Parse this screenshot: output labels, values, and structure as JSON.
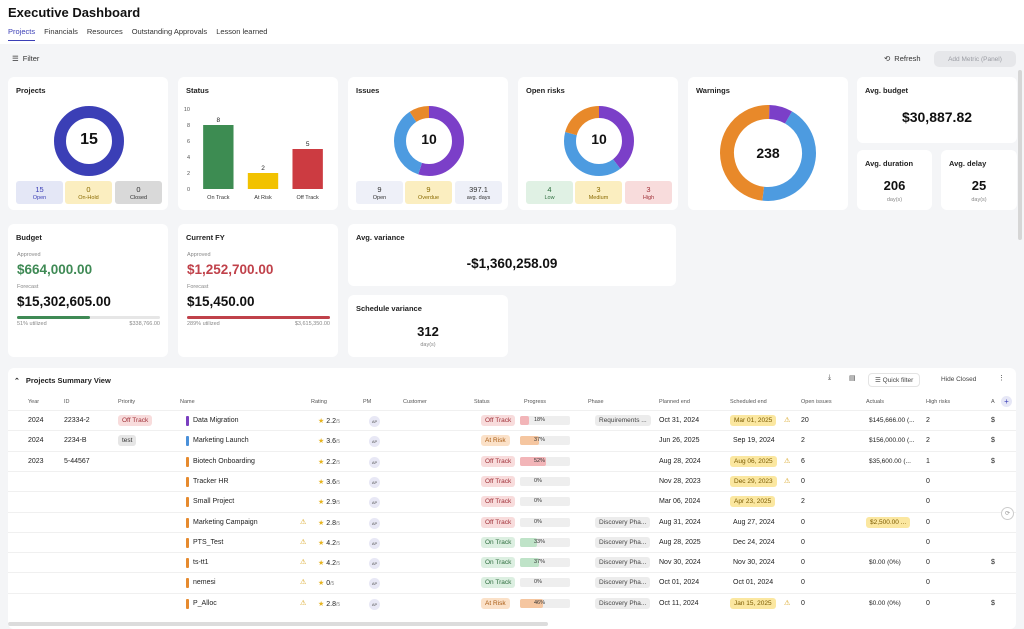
{
  "header": {
    "title": "Executive Dashboard",
    "tabs": [
      "Projects",
      "Financials",
      "Resources",
      "Outstanding Approvals",
      "Lesson learned"
    ]
  },
  "toolbar": {
    "filter": "Filter",
    "refresh": "Refresh",
    "add_metric": "Add Metric (Panel)"
  },
  "projects": {
    "title": "Projects",
    "total": "15",
    "stats": [
      {
        "n": "15",
        "l": "Open"
      },
      {
        "n": "0",
        "l": "On-Hold"
      },
      {
        "n": "0",
        "l": "Closed"
      }
    ]
  },
  "status": {
    "title": "Status",
    "chart_data": {
      "type": "bar",
      "categories": [
        "On Track",
        "At Risk",
        "Off Track"
      ],
      "values": [
        8,
        2,
        5
      ],
      "ylim": [
        0,
        10
      ],
      "yticks": [
        "0",
        "2",
        "4",
        "6",
        "8",
        "10"
      ],
      "colors": [
        "#3d8c52",
        "#f2c200",
        "#cc3b41"
      ]
    }
  },
  "issues": {
    "title": "Issues",
    "total": "10",
    "stats": [
      {
        "n": "9",
        "l": "Open"
      },
      {
        "n": "9",
        "l": "Overdue"
      },
      {
        "n": "397.1",
        "l": "avg. days"
      }
    ]
  },
  "open_risks": {
    "title": "Open risks",
    "total": "10",
    "stats": [
      {
        "n": "4",
        "l": "Low"
      },
      {
        "n": "3",
        "l": "Medium"
      },
      {
        "n": "3",
        "l": "High"
      }
    ]
  },
  "warnings": {
    "title": "Warnings",
    "total": "238"
  },
  "avg_budget": {
    "title": "Avg. budget",
    "value": "$30,887.82"
  },
  "avg_duration": {
    "title": "Avg. duration",
    "value": "206",
    "unit": "day(s)"
  },
  "avg_delay": {
    "title": "Avg. delay",
    "value": "25",
    "unit": "day(s)"
  },
  "budget": {
    "title": "Budget",
    "approved_label": "Approved",
    "approved": "$664,000.00",
    "forecast_label": "Forecast",
    "forecast": "$15,302,605.00",
    "utilized": "51% utilized",
    "amount": "$338,766.00",
    "fill": 0.51
  },
  "current_fy": {
    "title": "Current FY",
    "approved_label": "Approved",
    "approved": "$1,252,700.00",
    "forecast_label": "Forecast",
    "forecast": "$15,450.00",
    "utilized": "289% utilized",
    "amount": "$3,615,350.00",
    "fill": 1.0
  },
  "avg_variance": {
    "title": "Avg. variance",
    "value": "-$1,360,258.09"
  },
  "schedule_variance": {
    "title": "Schedule variance",
    "value": "312",
    "unit": "day(s)"
  },
  "table": {
    "title": "Projects Summary View",
    "quick_filter": "Quick filter",
    "hide_closed": "Hide Closed",
    "columns": [
      "Year",
      "ID",
      "Priority",
      "Name",
      "Rating",
      "PM",
      "Customer",
      "Status",
      "Progress",
      "Phase",
      "Planned end",
      "Scheduled end",
      "Open issues",
      "Actuals",
      "High risks",
      "A"
    ],
    "rows": [
      {
        "year": "2024",
        "id": "22334-2",
        "priority": "Off Track",
        "name": "Data Migration",
        "color": "#7a3fc0",
        "warn": "",
        "rating": "2.2",
        "status": "Off Track",
        "progress": "18%",
        "pfill": 0.18,
        "phase": "Requirements ...",
        "planned": "Oct 31, 2024",
        "sched": "Mar 01, 2025",
        "schedhl": true,
        "schedwarn": "⚠",
        "issues": "20",
        "actuals": "$145,666.00 (...",
        "actualshl": false,
        "risks": "2",
        "a": "$"
      },
      {
        "year": "2024",
        "id": "2234-B",
        "priority": "test",
        "name": "Marketing Launch",
        "color": "#4a90d9",
        "warn": "",
        "rating": "3.6",
        "status": "At Risk",
        "progress": "37%",
        "pfill": 0.37,
        "phase": "",
        "planned": "Jun 26, 2025",
        "sched": "Sep 19, 2024",
        "schedhl": false,
        "schedwarn": "",
        "issues": "2",
        "actuals": "$156,000.00 (...",
        "actualshl": false,
        "risks": "2",
        "a": "$"
      },
      {
        "year": "2023",
        "id": "5-44567",
        "priority": "",
        "name": "Biotech Onboarding",
        "color": "#e68a2e",
        "warn": "",
        "rating": "2.2",
        "status": "Off Track",
        "progress": "52%",
        "pfill": 0.52,
        "phase": "",
        "planned": "Aug 28, 2024",
        "sched": "Aug 06, 2025",
        "schedhl": true,
        "schedwarn": "⚠",
        "issues": "6",
        "actuals": "$35,600.00 (...",
        "actualshl": false,
        "risks": "1",
        "a": "$"
      },
      {
        "year": "",
        "id": "",
        "priority": "",
        "name": "Tracker HR",
        "color": "#e68a2e",
        "warn": "",
        "rating": "3.6",
        "status": "Off Track",
        "progress": "0%",
        "pfill": 0,
        "phase": "",
        "planned": "Nov 28, 2023",
        "sched": "Dec 29, 2023",
        "schedhl": true,
        "schedwarn": "⚠",
        "issues": "0",
        "actuals": "",
        "actualshl": false,
        "risks": "0",
        "a": ""
      },
      {
        "year": "",
        "id": "",
        "priority": "",
        "name": "Small Project",
        "color": "#e68a2e",
        "warn": "",
        "rating": "2.9",
        "status": "Off Track",
        "progress": "0%",
        "pfill": 0,
        "phase": "",
        "planned": "Mar 06, 2024",
        "sched": "Apr 23, 2025",
        "schedhl": true,
        "schedwarn": "",
        "issues": "2",
        "actuals": "",
        "actualshl": false,
        "risks": "0",
        "a": ""
      },
      {
        "year": "",
        "id": "",
        "priority": "",
        "name": "Marketing Campaign",
        "color": "#e68a2e",
        "warn": "⚠",
        "rating": "2.8",
        "status": "Off Track",
        "progress": "0%",
        "pfill": 0,
        "phase": "Discovery Pha...",
        "planned": "Aug 31, 2024",
        "sched": "Aug 27, 2024",
        "schedhl": false,
        "schedwarn": "",
        "issues": "0",
        "actuals": "$2,500.00 ...",
        "actualshl": true,
        "risks": "0",
        "a": ""
      },
      {
        "year": "",
        "id": "",
        "priority": "",
        "name": "PTS_Test",
        "color": "#e68a2e",
        "warn": "⚠",
        "rating": "4.2",
        "status": "On Track",
        "progress": "33%",
        "pfill": 0.33,
        "phase": "Discovery Pha...",
        "planned": "Aug 28, 2025",
        "sched": "Dec 24, 2024",
        "schedhl": false,
        "schedwarn": "",
        "issues": "0",
        "actuals": "",
        "actualshl": false,
        "risks": "0",
        "a": ""
      },
      {
        "year": "",
        "id": "",
        "priority": "",
        "name": "ts-tt1",
        "color": "#e68a2e",
        "warn": "⚠",
        "rating": "4.2",
        "status": "On Track",
        "progress": "37%",
        "pfill": 0.37,
        "phase": "Discovery Pha...",
        "planned": "Nov 30, 2024",
        "sched": "Nov 30, 2024",
        "schedhl": false,
        "schedwarn": "",
        "issues": "0",
        "actuals": "$0.00 (0%)",
        "actualshl": false,
        "risks": "0",
        "a": "$"
      },
      {
        "year": "",
        "id": "",
        "priority": "",
        "name": "nemesi",
        "color": "#e68a2e",
        "warn": "⚠",
        "rating": "0",
        "status": "On Track",
        "progress": "0%",
        "pfill": 0,
        "phase": "Discovery Pha...",
        "planned": "Oct 01, 2024",
        "sched": "Oct 01, 2024",
        "schedhl": false,
        "schedwarn": "",
        "issues": "0",
        "actuals": "",
        "actualshl": false,
        "risks": "0",
        "a": ""
      },
      {
        "year": "",
        "id": "",
        "priority": "",
        "name": "P_Alloc",
        "color": "#e68a2e",
        "warn": "⚠",
        "rating": "2.8",
        "status": "At Risk",
        "progress": "46%",
        "pfill": 0.46,
        "phase": "Discovery Pha...",
        "planned": "Oct 11, 2024",
        "sched": "Jan 15, 2025",
        "schedhl": true,
        "schedwarn": "⚠",
        "issues": "0",
        "actuals": "$0.00 (0%)",
        "actualshl": false,
        "risks": "0",
        "a": "$"
      }
    ],
    "rating_suffix": "/5",
    "pm_initials": "AP"
  }
}
